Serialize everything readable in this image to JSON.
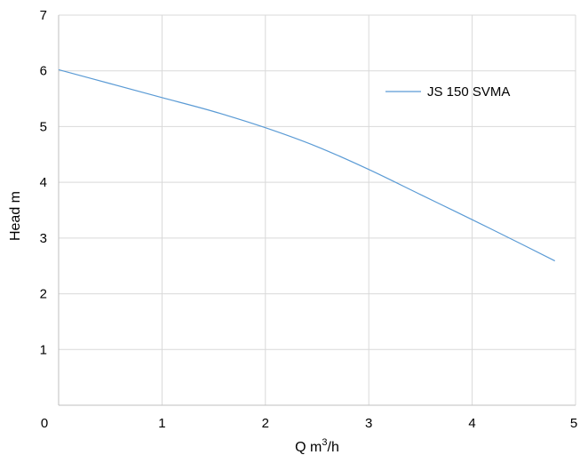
{
  "chart_data": {
    "type": "line",
    "title": "",
    "xlabel": "Q m³/h",
    "xlabel_parts": {
      "base": "Q m",
      "sup": "3",
      "tail": "/h"
    },
    "ylabel": "Head m",
    "xlim": [
      0,
      5
    ],
    "ylim": [
      0,
      7
    ],
    "xticks": [
      "0",
      "1",
      "2",
      "3",
      "4",
      "5"
    ],
    "yticks": [
      "1",
      "2",
      "3",
      "4",
      "5",
      "6",
      "7"
    ],
    "grid": true,
    "legend_position": "top-right",
    "series": [
      {
        "name": "JS 150 SVMA",
        "color": "#5b9bd5",
        "x": [
          0,
          0.5,
          1.0,
          1.5,
          2.0,
          2.5,
          3.0,
          3.5,
          4.0,
          4.5,
          4.8
        ],
        "y": [
          6.02,
          5.77,
          5.52,
          5.27,
          4.98,
          4.64,
          4.23,
          3.78,
          3.33,
          2.87,
          2.59
        ]
      }
    ]
  },
  "colors": {
    "grid": "#d9d9d9",
    "axis": "#bfbfbf",
    "text": "#000000"
  }
}
